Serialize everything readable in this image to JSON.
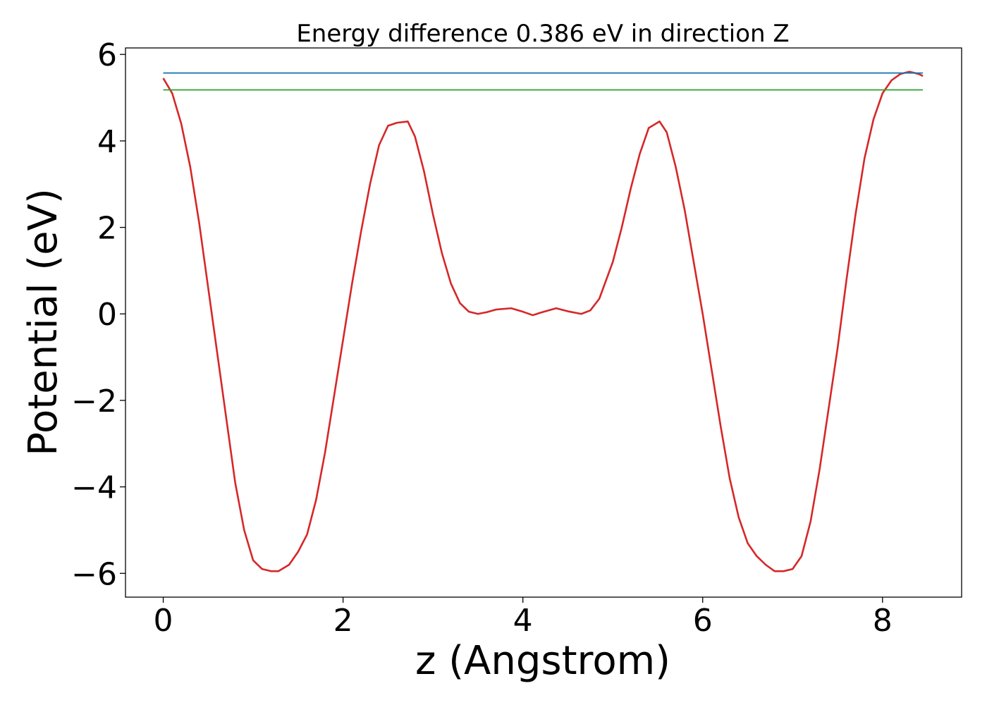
{
  "chart_data": {
    "type": "line",
    "title": "Energy difference 0.386 eV in direction Z",
    "xlabel": "z (Angstrom)",
    "ylabel": "Potential (eV)",
    "xlim": [
      -0.42,
      8.88
    ],
    "ylim": [
      -6.55,
      6.15
    ],
    "xticks": [
      0,
      2,
      4,
      6,
      8
    ],
    "xtick_labels": [
      "0",
      "2",
      "4",
      "6",
      "8"
    ],
    "yticks": [
      -6,
      -4,
      -2,
      0,
      2,
      4,
      6
    ],
    "ytick_labels": [
      "−6",
      "−4",
      "−2",
      "0",
      "2",
      "4",
      "6"
    ],
    "grid": false,
    "series": [
      {
        "color": "#d62728",
        "x": [
          0,
          0.1,
          0.2,
          0.3,
          0.4,
          0.5,
          0.6,
          0.7,
          0.8,
          0.9,
          1.0,
          1.1,
          1.2,
          1.28,
          1.4,
          1.5,
          1.6,
          1.7,
          1.8,
          1.9,
          2.0,
          2.1,
          2.2,
          2.3,
          2.4,
          2.5,
          2.6,
          2.72,
          2.8,
          2.9,
          3.0,
          3.1,
          3.2,
          3.3,
          3.4,
          3.5,
          3.6,
          3.7,
          3.87,
          4.0,
          4.11,
          4.2,
          4.37,
          4.5,
          4.65,
          4.75,
          4.85,
          5.0,
          5.1,
          5.2,
          5.3,
          5.4,
          5.52,
          5.6,
          5.7,
          5.8,
          5.9,
          6.0,
          6.1,
          6.2,
          6.3,
          6.4,
          6.5,
          6.6,
          6.7,
          6.8,
          6.9,
          7.0,
          7.1,
          7.2,
          7.3,
          7.4,
          7.5,
          7.6,
          7.7,
          7.8,
          7.9,
          8.0,
          8.1,
          8.2,
          8.3,
          8.4,
          8.45
        ],
        "y": [
          5.45,
          5.1,
          4.4,
          3.4,
          2.1,
          0.6,
          -0.9,
          -2.4,
          -3.9,
          -5.0,
          -5.7,
          -5.9,
          -5.95,
          -5.95,
          -5.8,
          -5.5,
          -5.1,
          -4.3,
          -3.2,
          -1.9,
          -0.6,
          0.7,
          1.9,
          3.0,
          3.9,
          4.35,
          4.42,
          4.45,
          4.1,
          3.3,
          2.3,
          1.4,
          0.7,
          0.25,
          0.05,
          0.0,
          0.04,
          0.1,
          0.13,
          0.05,
          -0.03,
          0.03,
          0.13,
          0.06,
          0.0,
          0.08,
          0.35,
          1.2,
          2.0,
          2.9,
          3.7,
          4.3,
          4.45,
          4.2,
          3.4,
          2.4,
          1.2,
          0.0,
          -1.3,
          -2.6,
          -3.8,
          -4.7,
          -5.3,
          -5.6,
          -5.8,
          -5.95,
          -5.95,
          -5.9,
          -5.6,
          -4.8,
          -3.6,
          -2.2,
          -0.8,
          0.8,
          2.3,
          3.6,
          4.5,
          5.1,
          5.4,
          5.55,
          5.6,
          5.55,
          5.5
        ]
      },
      {
        "color": "#1f77b4",
        "x": [
          0,
          8.45
        ],
        "y": [
          5.57,
          5.57
        ]
      },
      {
        "color": "#2ca02c",
        "x": [
          0,
          8.45
        ],
        "y": [
          5.18,
          5.18
        ]
      }
    ]
  }
}
